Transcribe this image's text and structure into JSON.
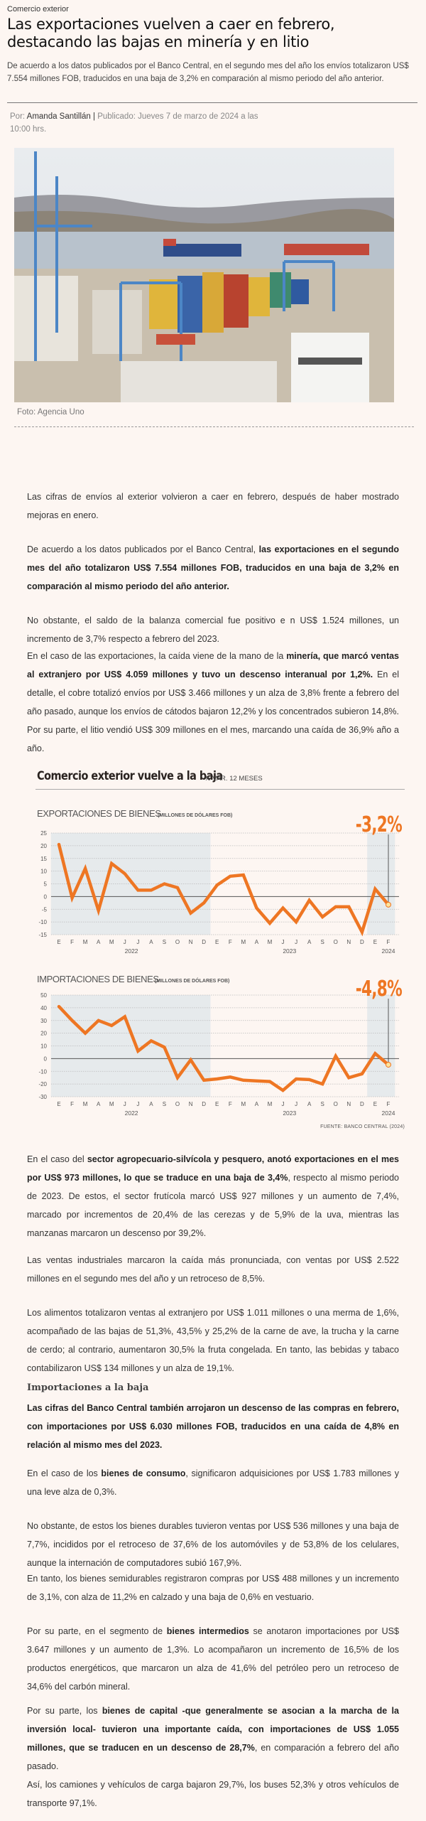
{
  "article": {
    "kicker": "Comercio exterior",
    "title": "Las exportaciones vuelven a caer en febrero, destacando las bajas en minería y en litio",
    "lead": "De acuerdo a los datos publicados por el Banco Central, en el segundo mes del año los envíos totalizaron US$ 7.554 millones FOB, traducidos en una baja de 3,2% en comparación al mismo periodo del año anterior.",
    "byline": {
      "por_label": "Por:",
      "author": "Amanda Santillán",
      "separator": "|",
      "published": "Publicado: Jueves 7 de marzo de 2024 a las 10:00 hrs."
    },
    "photo": {
      "alt": "Puerto con contenedores y grúas",
      "caption": "Foto: Agencia Uno"
    },
    "paragraphs": [
      {
        "parts": [
          {
            "t": "Las cifras de envíos al exterior volvieron a caer en febrero, después de haber mostrado mejoras en enero.",
            "b": false
          }
        ]
      },
      {
        "parts": [
          {
            "t": "De acuerdo a los datos publicados por el Banco Central, ",
            "b": false
          },
          {
            "t": "las exportaciones en el segundo mes del año totalizaron US$ 7.554 millones FOB, traducidos en una baja de 3,2% en comparación al mismo periodo del año anterior.",
            "b": true
          }
        ]
      },
      {
        "parts": [
          {
            "t": "No obstante, el saldo de la balanza comercial fue positivo e n US$ 1.524 millones, un incremento de 3,7% respecto a febrero del 2023.",
            "b": false
          }
        ]
      },
      {
        "parts": [
          {
            "t": "En el caso de las exportaciones, la caída viene de la mano de la ",
            "b": false
          },
          {
            "t": "minería, que marcó ventas al extranjero por US$ 4.059 millones y tuvo un descenso interanual por 1,2%.",
            "b": true
          },
          {
            "t": " En el detalle, el cobre totalizó envíos por US$ 3.466 millones y un alza de 3,8% frente a febrero del año pasado, aunque los envíos de cátodos bajaron 12,2% y los concentrados subieron 14,8%. Por su parte, el litio vendió US$ 309 millones en el mes, marcando una caída de 36,9% año a año.",
            "b": false
          }
        ]
      },
      {
        "parts": [
          {
            "t": "En el caso del ",
            "b": false
          },
          {
            "t": "sector agropecuario-silvícola y pesquero, anotó exportaciones en el mes por US$ 973 millones, lo que se traduce en una baja de 3,4%",
            "b": true
          },
          {
            "t": ", respecto al mismo periodo de 2023. De estos, el sector frutícola marcó US$ 927 millones y un aumento de 7,4%, marcado por incrementos de 20,4% de las cerezas y de 5,9% de la uva, mientras las manzanas marcaron un descenso por 39,2%.",
            "b": false
          }
        ]
      },
      {
        "parts": [
          {
            "t": "Las ventas industriales marcaron la caída más pronunciada, con ventas por US$ 2.522 millones en el segundo mes del año y un retroceso de 8,5%.",
            "b": false
          }
        ]
      },
      {
        "parts": [
          {
            "t": "Los alimentos totalizaron ventas al extranjero por US$ 1.011 millones o una merma de 1,6%, acompañado de las bajas de 51,3%, 43,5% y 25,2% de la carne de ave, la trucha y la carne de cerdo; al contrario, aumentaron 30,5% la fruta congelada. En tanto, las bebidas y tabaco contabilizaron US$ 134 millones y un alza de 19,1%.",
            "b": false
          }
        ]
      },
      {
        "parts": [
          {
            "t": "Las cifras del Banco Central también arrojaron un descenso de las compras en febrero, con importaciones por US$ 6.030 millones FOB, traducidos en una caída de 4,8% en relación al mismo mes del 2023.",
            "b": true
          }
        ]
      },
      {
        "parts": [
          {
            "t": "En el caso de los ",
            "b": false
          },
          {
            "t": "bienes de consumo",
            "b": true
          },
          {
            "t": ", significaron adquisiciones por US$ 1.783 millones y una leve alza de 0,3%.",
            "b": false
          }
        ]
      },
      {
        "parts": [
          {
            "t": "No obstante, de estos los bienes durables tuvieron ventas por US$ 536 millones y una baja de 7,7%, incididos por el retroceso de 37,6% de los automóviles y de 53,8% de los celulares, aunque la internación de computadores subió 167,9%.",
            "b": false
          }
        ]
      },
      {
        "parts": [
          {
            "t": "En tanto, los bienes semidurables registraron compras por US$ 488 millones y un incremento de 3,1%, con alza de 11,2% en calzado y una baja de 0,6% en vestuario.",
            "b": false
          }
        ]
      },
      {
        "parts": [
          {
            "t": "Por su parte, en el segmento de ",
            "b": false
          },
          {
            "t": "bienes intermedios",
            "b": true
          },
          {
            "t": " se anotaron importaciones por US$ 3.647 millones y un aumento de 1,3%. Lo acompañaron un incremento de 16,5% de los productos energéticos, que marcaron un alza de 41,6% del petróleo pero un retroceso de 34,6% del carbón mineral.",
            "b": false
          }
        ]
      },
      {
        "parts": [
          {
            "t": "Por su parte, los ",
            "b": false
          },
          {
            "t": "bienes de capital -que generalmente se asocian a la marcha de la inversión local- tuvieron una importante caída, con importaciones de US$ 1.055 millones, que se traducen en un descenso de 28,7%",
            "b": true
          },
          {
            "t": ", en comparación a febrero del año pasado.",
            "b": false
          }
        ]
      },
      {
        "parts": [
          {
            "t": "Así, los camiones y vehículos de carga bajaron 29,7%, los buses 52,3% y otros vehículos de transporte 97,1%.",
            "b": false
          }
        ]
      }
    ],
    "subheading": "Importaciones a la baja"
  },
  "chart_data": [
    {
      "type": "line",
      "figure_title": "Comercio exterior vuelve a la baja",
      "figure_subtitle": "% VAR. 12 MESES",
      "title": "EXPORTACIONES DE BIENES",
      "title_note": "(MILLONES DE DÓLARES FOB)",
      "highlight_label": "-3,2%",
      "x": [
        "E",
        "F",
        "M",
        "A",
        "M",
        "J",
        "J",
        "A",
        "S",
        "O",
        "N",
        "D",
        "E",
        "F",
        "M",
        "A",
        "M",
        "J",
        "J",
        "A",
        "S",
        "O",
        "N",
        "D",
        "E",
        "F"
      ],
      "year_labels": [
        {
          "label": "2022",
          "center_index": 5.5
        },
        {
          "label": "2023",
          "center_index": 17.5
        },
        {
          "label": "2024",
          "center_index": 25
        }
      ],
      "shaded_ranges": [
        [
          0,
          11
        ],
        [
          24,
          25
        ]
      ],
      "series": [
        {
          "name": "Exportaciones",
          "color": "#ee7623",
          "values": [
            20.5,
            -0.5,
            11,
            -5.5,
            13,
            9,
            2.5,
            2.5,
            5,
            3.5,
            -6.5,
            -2.5,
            4.5,
            8,
            8.5,
            -4.5,
            -10.5,
            -4.5,
            -10,
            -1.5,
            -8,
            -4,
            -4,
            -14,
            3,
            -3.2
          ]
        }
      ],
      "yticks": [
        25,
        20,
        15,
        10,
        5,
        0,
        -5,
        -10,
        -15
      ],
      "ylim": [
        -15,
        25
      ],
      "grid": true
    },
    {
      "type": "line",
      "title": "IMPORTACIONES DE BIENES",
      "title_note": "(MILLONES DE DÓLARES FOB)",
      "highlight_label": "-4,8%",
      "x": [
        "E",
        "F",
        "M",
        "A",
        "M",
        "J",
        "J",
        "A",
        "S",
        "O",
        "N",
        "D",
        "E",
        "F",
        "M",
        "A",
        "M",
        "J",
        "J",
        "A",
        "S",
        "O",
        "N",
        "D",
        "E",
        "F"
      ],
      "year_labels": [
        {
          "label": "2022",
          "center_index": 5.5
        },
        {
          "label": "2023",
          "center_index": 17.5
        },
        {
          "label": "2024",
          "center_index": 25
        }
      ],
      "shaded_ranges": [
        [
          0,
          11
        ],
        [
          24,
          25
        ]
      ],
      "series": [
        {
          "name": "Importaciones",
          "color": "#ee7623",
          "values": [
            41,
            30,
            20,
            30,
            26,
            33,
            6,
            14,
            9,
            -15,
            -1,
            -17,
            -16,
            -14.5,
            -17,
            -17.5,
            -18,
            -25,
            -16,
            -16.5,
            -20,
            2,
            -15,
            -12,
            4,
            -4.8
          ]
        }
      ],
      "yticks": [
        50,
        40,
        30,
        20,
        10,
        0,
        -10,
        -20,
        -30
      ],
      "ylim": [
        -30,
        50
      ],
      "grid": true,
      "source": "FUENTE: BANCO CENTRAL (2024)"
    }
  ],
  "colors": {
    "accent": "#ee7623",
    "background": "#fdf6f2",
    "shade": "#e6eaec"
  }
}
